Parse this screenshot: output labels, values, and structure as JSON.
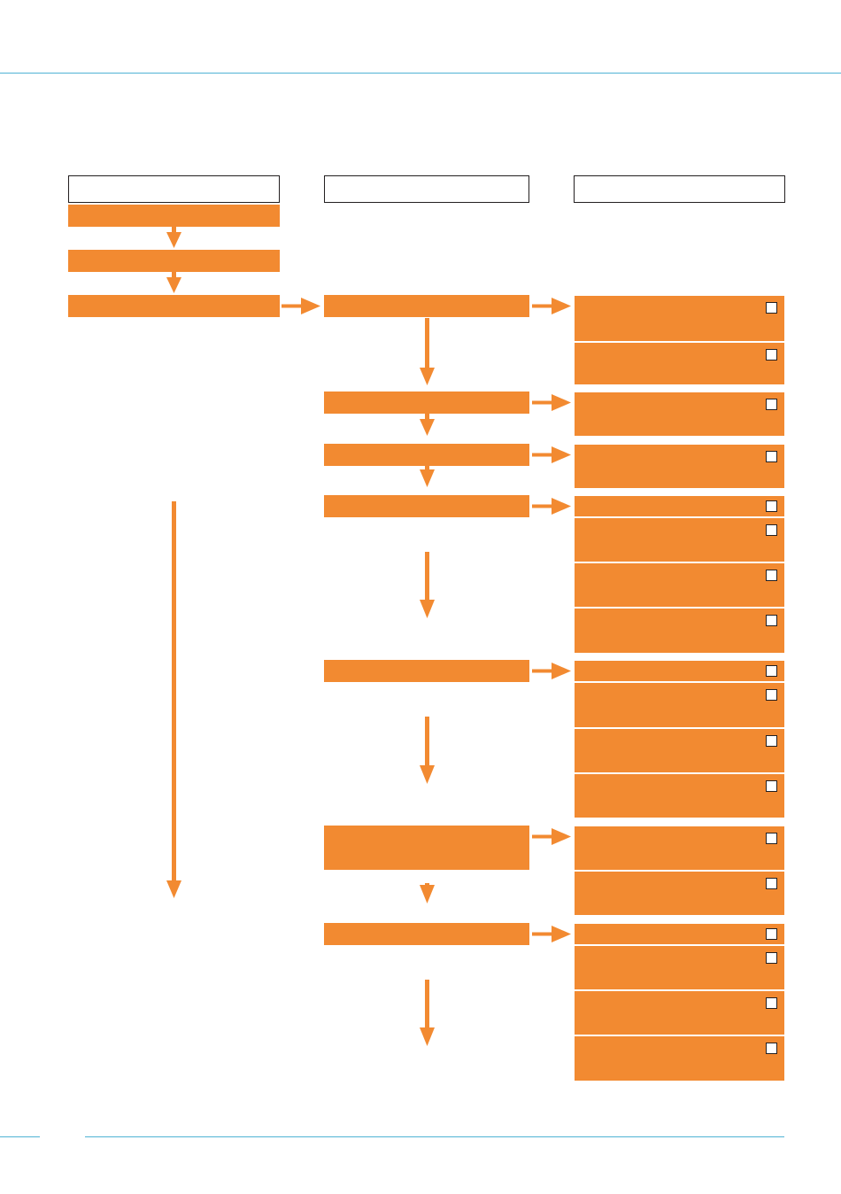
{
  "header": {
    "title": ""
  },
  "columns": [
    {
      "id": "col-1",
      "label": ""
    },
    {
      "id": "col-2",
      "label": ""
    },
    {
      "id": "col-3",
      "label": ""
    }
  ],
  "col1_steps": [
    "",
    "",
    ""
  ],
  "col2_steps": [
    "",
    "",
    "",
    "",
    "",
    "",
    ""
  ],
  "checklist_groups": [
    [
      "",
      ""
    ],
    [
      ""
    ],
    [
      ""
    ],
    [
      "",
      "",
      "",
      ""
    ],
    [
      "",
      "",
      "",
      ""
    ],
    [
      "",
      ""
    ],
    [
      "",
      "",
      "",
      ""
    ]
  ],
  "footer": {
    "page_number": ""
  },
  "colors": {
    "accent": "#f28a31",
    "rule": "#4fb3d4",
    "border": "#231f20"
  }
}
